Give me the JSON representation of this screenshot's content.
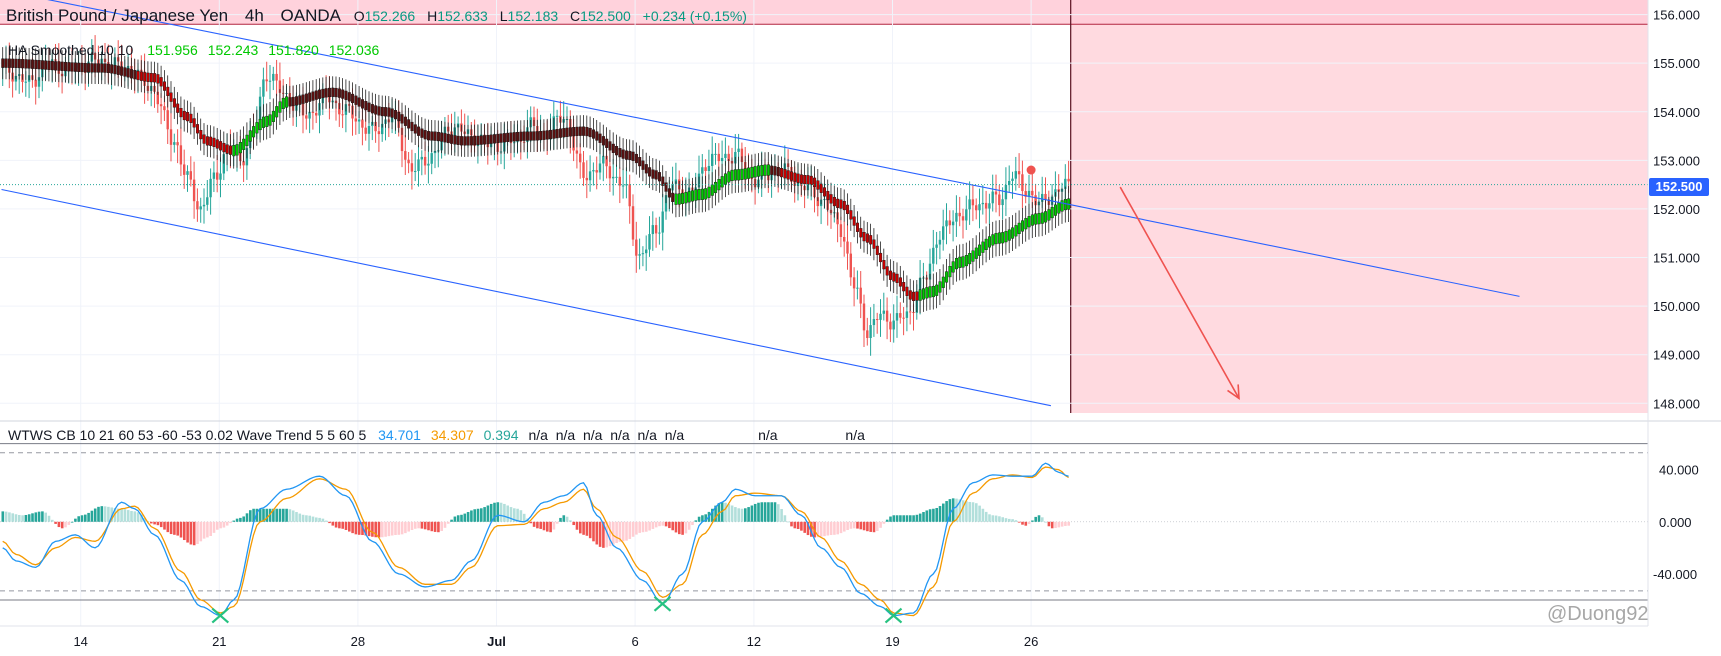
{
  "header": {
    "symbol": "British Pound / Japanese Yen",
    "interval": "4h",
    "broker": "OANDA",
    "o_label": "O",
    "o_value": "152.266",
    "h_label": "H",
    "h_value": "152.633",
    "l_label": "L",
    "l_value": "152.183",
    "c_label": "C",
    "c_value": "152.500",
    "change": "+0.234 (+0.15%)"
  },
  "indicator1": {
    "name": "HA Smoothed 10 10",
    "values": [
      "151.956",
      "152.243",
      "151.820",
      "152.036"
    ],
    "color": "#00c800"
  },
  "indicator2": {
    "name": "WTWS CB 10 21 60 53 -60 -53 0.02 Wave Trend 5 5 60 5",
    "v1": "34.701",
    "v1_color": "#2196f3",
    "v2": "34.307",
    "v2_color": "#f59a00",
    "v3": "0.394",
    "v3_color": "#26a69a",
    "rest": "n/a  n/a  n/a  n/a  n/a  n/a",
    "na1": "n/a",
    "na2": "n/a"
  },
  "current_price_label": "152.500",
  "watermark": "@Duong92",
  "colors": {
    "up": "#26a69a",
    "down": "#ef5350",
    "ha_up": "#00c800",
    "ha_down": "#c40000",
    "channel": "#2962ff",
    "zone": "#ffd6dd",
    "wt1": "#2196f3",
    "wt2": "#f59a00",
    "arrow": "#ef5350"
  },
  "chart_data": {
    "type": "candlestick",
    "price_axis": {
      "ticks": [
        "156.000",
        "155.000",
        "154.000",
        "153.000",
        "152.000",
        "151.000",
        "150.000",
        "149.000",
        "148.000"
      ],
      "range": [
        147.8,
        156.3
      ]
    },
    "oscillator_axis": {
      "ticks": [
        "40.000",
        "0.000",
        "-40.000"
      ],
      "levels": [
        60,
        53,
        -53,
        -60
      ],
      "range": [
        -80,
        72
      ]
    },
    "time_axis": {
      "ticks": [
        "14",
        "21",
        "28",
        "Jul",
        "6",
        "12",
        "19",
        "26"
      ],
      "tick_bars": [
        24,
        66,
        108,
        150,
        192,
        228,
        270,
        312
      ]
    },
    "bars_count": 324,
    "close_anchors": [
      [
        0,
        154.9
      ],
      [
        8,
        154.6
      ],
      [
        14,
        155.0
      ],
      [
        20,
        154.85
      ],
      [
        28,
        155.05
      ],
      [
        38,
        154.9
      ],
      [
        45,
        154.5
      ],
      [
        52,
        153.4
      ],
      [
        56,
        152.6
      ],
      [
        60,
        152.0
      ],
      [
        64,
        152.6
      ],
      [
        68,
        153.2
      ],
      [
        72,
        153.0
      ],
      [
        76,
        153.6
      ],
      [
        80,
        154.8
      ],
      [
        86,
        154.3
      ],
      [
        92,
        153.9
      ],
      [
        98,
        154.3
      ],
      [
        104,
        154.0
      ],
      [
        112,
        153.6
      ],
      [
        118,
        153.9
      ],
      [
        124,
        152.8
      ],
      [
        130,
        153.1
      ],
      [
        136,
        153.7
      ],
      [
        142,
        153.5
      ],
      [
        148,
        153.3
      ],
      [
        156,
        153.4
      ],
      [
        160,
        153.7
      ],
      [
        164,
        153.55
      ],
      [
        170,
        153.9
      ],
      [
        176,
        152.7
      ],
      [
        182,
        152.9
      ],
      [
        188,
        152.5
      ],
      [
        193,
        151.0
      ],
      [
        198,
        151.6
      ],
      [
        203,
        152.5
      ],
      [
        208,
        152.3
      ],
      [
        214,
        153.0
      ],
      [
        222,
        153.1
      ],
      [
        228,
        152.6
      ],
      [
        236,
        152.8
      ],
      [
        242,
        152.5
      ],
      [
        248,
        152.2
      ],
      [
        254,
        151.6
      ],
      [
        258,
        150.4
      ],
      [
        262,
        149.5
      ],
      [
        266,
        149.8
      ],
      [
        270,
        149.7
      ],
      [
        274,
        149.8
      ],
      [
        279,
        150.5
      ],
      [
        284,
        151.5
      ],
      [
        290,
        151.9
      ],
      [
        296,
        152.1
      ],
      [
        302,
        152.2
      ],
      [
        306,
        152.7
      ],
      [
        310,
        152.4
      ],
      [
        314,
        152.1
      ],
      [
        318,
        152.3
      ],
      [
        323,
        152.5
      ]
    ],
    "ha_smoothed_anchors": [
      [
        0,
        155.0
      ],
      [
        30,
        154.9
      ],
      [
        46,
        154.7
      ],
      [
        56,
        153.9
      ],
      [
        62,
        153.4
      ],
      [
        70,
        153.2
      ],
      [
        80,
        153.8
      ],
      [
        86,
        154.2
      ],
      [
        100,
        154.4
      ],
      [
        116,
        154.0
      ],
      [
        130,
        153.5
      ],
      [
        140,
        153.4
      ],
      [
        160,
        153.5
      ],
      [
        176,
        153.6
      ],
      [
        190,
        153.1
      ],
      [
        198,
        152.7
      ],
      [
        204,
        152.2
      ],
      [
        212,
        152.3
      ],
      [
        222,
        152.7
      ],
      [
        232,
        152.8
      ],
      [
        244,
        152.6
      ],
      [
        254,
        152.1
      ],
      [
        262,
        151.4
      ],
      [
        270,
        150.6
      ],
      [
        276,
        150.2
      ],
      [
        282,
        150.3
      ],
      [
        290,
        150.9
      ],
      [
        302,
        151.4
      ],
      [
        314,
        151.8
      ],
      [
        323,
        152.1
      ]
    ],
    "ha_up_ranges": [
      [
        70,
        86
      ],
      [
        204,
        232
      ],
      [
        278,
        323
      ]
    ],
    "channel_upper": [
      [
        0,
        156.5
      ],
      [
        323,
        152.1
      ],
      [
        460,
        150.2
      ]
    ],
    "channel_lower": [
      [
        0,
        152.4
      ],
      [
        318,
        147.95
      ]
    ],
    "short_arrow_from": [
      339,
      152.45
    ],
    "short_arrow_to": [
      375,
      148.1
    ],
    "zone": {
      "x_start_bar": 324,
      "y_top": 156.3,
      "y_bottom": 147.8,
      "header_band": [
        155.8,
        156.3
      ]
    },
    "signal_marker": {
      "bar": 312,
      "price": 152.8
    },
    "wavetrend_wt1_anchors": [
      [
        0,
        -20
      ],
      [
        4,
        -30
      ],
      [
        10,
        -35
      ],
      [
        16,
        -15
      ],
      [
        22,
        -10
      ],
      [
        28,
        -20
      ],
      [
        36,
        15
      ],
      [
        40,
        10
      ],
      [
        46,
        -10
      ],
      [
        54,
        -45
      ],
      [
        60,
        -65
      ],
      [
        66,
        -72
      ],
      [
        70,
        -60
      ],
      [
        78,
        10
      ],
      [
        86,
        25
      ],
      [
        96,
        35
      ],
      [
        104,
        20
      ],
      [
        112,
        -15
      ],
      [
        120,
        -40
      ],
      [
        128,
        -50
      ],
      [
        136,
        -45
      ],
      [
        142,
        -30
      ],
      [
        150,
        5
      ],
      [
        158,
        0
      ],
      [
        164,
        15
      ],
      [
        170,
        20
      ],
      [
        176,
        30
      ],
      [
        180,
        5
      ],
      [
        186,
        -20
      ],
      [
        194,
        -45
      ],
      [
        200,
        -63
      ],
      [
        206,
        -40
      ],
      [
        212,
        0
      ],
      [
        218,
        15
      ],
      [
        222,
        25
      ],
      [
        228,
        20
      ],
      [
        236,
        20
      ],
      [
        242,
        5
      ],
      [
        248,
        -20
      ],
      [
        254,
        -35
      ],
      [
        260,
        -55
      ],
      [
        266,
        -65
      ],
      [
        270,
        -72
      ],
      [
        276,
        -70
      ],
      [
        282,
        -40
      ],
      [
        288,
        10
      ],
      [
        294,
        30
      ],
      [
        300,
        36
      ],
      [
        306,
        35
      ],
      [
        312,
        35
      ],
      [
        316,
        45
      ],
      [
        320,
        38
      ],
      [
        323,
        35
      ]
    ],
    "wavetrend_wt2_anchors": [
      [
        0,
        -15
      ],
      [
        4,
        -25
      ],
      [
        10,
        -33
      ],
      [
        16,
        -20
      ],
      [
        22,
        -12
      ],
      [
        28,
        -15
      ],
      [
        36,
        10
      ],
      [
        40,
        12
      ],
      [
        46,
        -5
      ],
      [
        54,
        -38
      ],
      [
        60,
        -60
      ],
      [
        66,
        -70
      ],
      [
        70,
        -65
      ],
      [
        78,
        0
      ],
      [
        86,
        18
      ],
      [
        96,
        33
      ],
      [
        104,
        25
      ],
      [
        112,
        -8
      ],
      [
        120,
        -35
      ],
      [
        128,
        -48
      ],
      [
        136,
        -48
      ],
      [
        142,
        -35
      ],
      [
        150,
        -3
      ],
      [
        158,
        -2
      ],
      [
        164,
        10
      ],
      [
        170,
        15
      ],
      [
        176,
        25
      ],
      [
        180,
        10
      ],
      [
        186,
        -12
      ],
      [
        194,
        -38
      ],
      [
        200,
        -58
      ],
      [
        206,
        -48
      ],
      [
        212,
        -10
      ],
      [
        218,
        8
      ],
      [
        222,
        20
      ],
      [
        228,
        22
      ],
      [
        236,
        20
      ],
      [
        242,
        8
      ],
      [
        248,
        -12
      ],
      [
        254,
        -30
      ],
      [
        260,
        -48
      ],
      [
        266,
        -60
      ],
      [
        270,
        -70
      ],
      [
        276,
        -72
      ],
      [
        282,
        -50
      ],
      [
        288,
        0
      ],
      [
        294,
        22
      ],
      [
        300,
        33
      ],
      [
        306,
        36
      ],
      [
        312,
        34
      ],
      [
        316,
        42
      ],
      [
        320,
        40
      ],
      [
        323,
        34
      ]
    ],
    "wavetrend_cross_markers": [
      [
        66,
        -72
      ],
      [
        200,
        -63
      ],
      [
        270,
        -72
      ]
    ],
    "histogram_anchors": [
      [
        0,
        8
      ],
      [
        6,
        5
      ],
      [
        12,
        8
      ],
      [
        18,
        -5
      ],
      [
        24,
        5
      ],
      [
        30,
        12
      ],
      [
        36,
        10
      ],
      [
        40,
        8
      ],
      [
        46,
        -2
      ],
      [
        52,
        -10
      ],
      [
        58,
        -18
      ],
      [
        62,
        -12
      ],
      [
        66,
        -5
      ],
      [
        72,
        3
      ],
      [
        76,
        10
      ],
      [
        82,
        10
      ],
      [
        86,
        10
      ],
      [
        92,
        5
      ],
      [
        96,
        3
      ],
      [
        102,
        -5
      ],
      [
        108,
        -10
      ],
      [
        114,
        -12
      ],
      [
        120,
        -10
      ],
      [
        126,
        -5
      ],
      [
        132,
        -8
      ],
      [
        138,
        5
      ],
      [
        144,
        10
      ],
      [
        150,
        15
      ],
      [
        156,
        10
      ],
      [
        162,
        -5
      ],
      [
        166,
        -8
      ],
      [
        170,
        5
      ],
      [
        176,
        -10
      ],
      [
        182,
        -20
      ],
      [
        188,
        -15
      ],
      [
        194,
        -8
      ],
      [
        200,
        -3
      ],
      [
        206,
        -10
      ],
      [
        212,
        5
      ],
      [
        218,
        15
      ],
      [
        224,
        10
      ],
      [
        230,
        15
      ],
      [
        234,
        15
      ],
      [
        240,
        -5
      ],
      [
        246,
        -12
      ],
      [
        252,
        -10
      ],
      [
        258,
        -5
      ],
      [
        264,
        -8
      ],
      [
        270,
        5
      ],
      [
        276,
        5
      ],
      [
        282,
        10
      ],
      [
        288,
        18
      ],
      [
        294,
        15
      ],
      [
        300,
        5
      ],
      [
        306,
        2
      ],
      [
        310,
        -3
      ],
      [
        314,
        5
      ],
      [
        318,
        -5
      ],
      [
        323,
        -3
      ]
    ]
  }
}
